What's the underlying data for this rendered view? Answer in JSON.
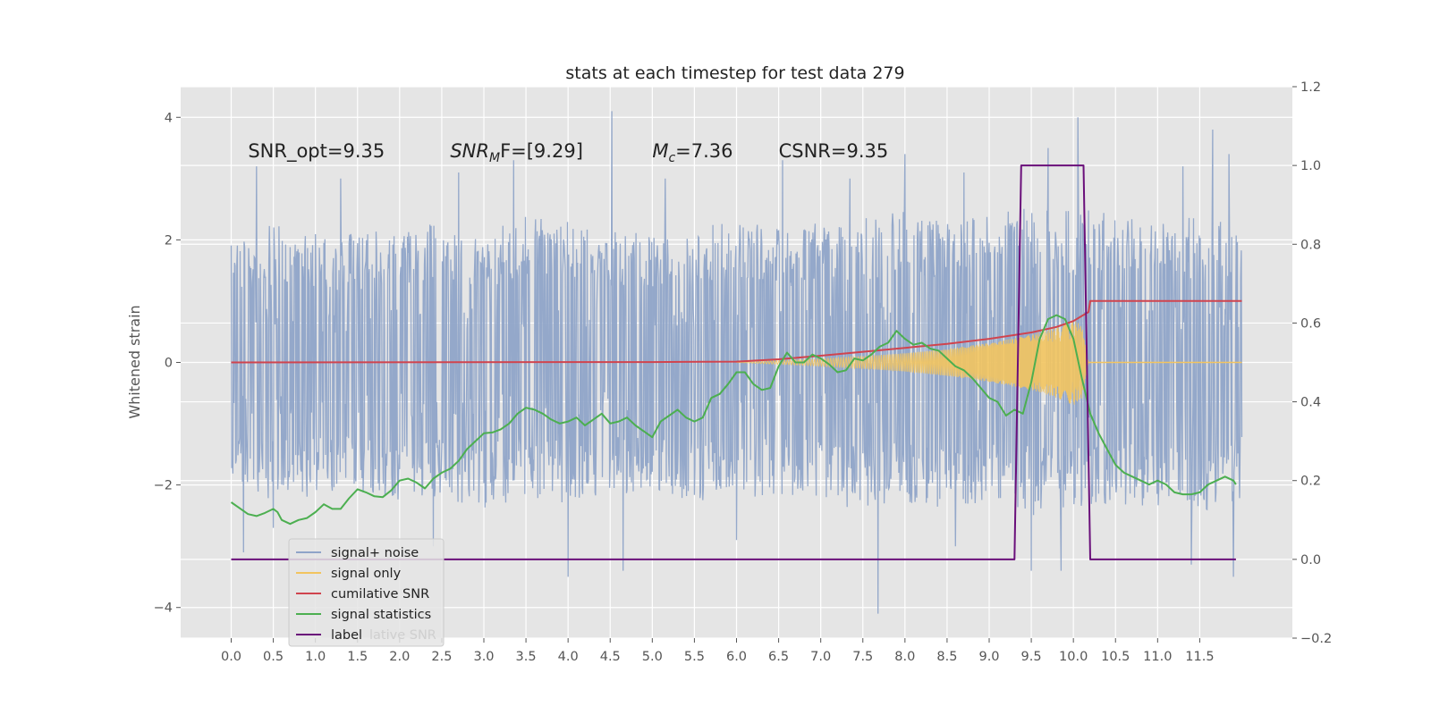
{
  "chart_data": {
    "type": "line",
    "title": "stats at each timestep for test data 279",
    "ylabel": "Whitened strain",
    "xlim": [
      -0.6,
      12.6
    ],
    "ylim_left": [
      -4.5,
      4.5
    ],
    "ylim_right": [
      -0.2,
      1.2
    ],
    "grid": true,
    "x_ticks": [
      "0.0",
      "0.5",
      "1.0",
      "1.5",
      "2.0",
      "2.5",
      "3.0",
      "3.5",
      "4.0",
      "4.5",
      "5.0",
      "5.5",
      "6.0",
      "6.5",
      "7.0",
      "7.5",
      "8.0",
      "8.5",
      "9.0",
      "9.5",
      "10.0",
      "10.5",
      "11.0",
      "11.5"
    ],
    "y_ticks_left": [
      "4",
      "2",
      "0",
      "−2",
      "−4"
    ],
    "y_ticks_right": [
      "1.2",
      "1.0",
      "0.8",
      "0.6",
      "0.4",
      "0.2",
      "0.0",
      "−0.2"
    ],
    "annotations": [
      {
        "text": "SNR_opt=9.35",
        "x": 0.2,
        "y": 3.35
      },
      {
        "base": "SNR",
        "sub": "M",
        "rest": "F=[9.29]",
        "x": 2.6,
        "y": 3.35
      },
      {
        "base": "M",
        "sub": "c",
        "rest": "=7.36",
        "x": 5.0,
        "y": 3.35
      },
      {
        "text": "CSNR=9.35",
        "x": 6.5,
        "y": 3.35
      }
    ],
    "legend": {
      "placement": "lower-left",
      "entries": [
        {
          "label": "signal+ noise",
          "color": "#8fa4c8"
        },
        {
          "label": "signal only",
          "color": "#f2c45f"
        },
        {
          "label": "cumilative SNR",
          "color": "#d0444e"
        },
        {
          "label": "signal statistics",
          "color": "#4caf50"
        },
        {
          "label": "label",
          "color": "#6a0f7a"
        }
      ],
      "overlap_text": "lative SNR"
    },
    "series": [
      {
        "name": "signal+ noise",
        "axis": "left",
        "color": "#8fa4c8",
        "kind": "noise",
        "x_range": [
          0.0,
          12.0
        ],
        "envelope_pos": [
          [
            0.0,
            2.0
          ],
          [
            0.5,
            2.3
          ],
          [
            1.0,
            2.2
          ],
          [
            1.5,
            2.1
          ],
          [
            2.0,
            2.2
          ],
          [
            2.5,
            2.3
          ],
          [
            3.0,
            2.2
          ],
          [
            3.5,
            2.4
          ],
          [
            4.0,
            2.3
          ],
          [
            4.5,
            2.2
          ],
          [
            5.0,
            2.1
          ],
          [
            5.5,
            2.2
          ],
          [
            6.0,
            2.3
          ],
          [
            6.5,
            2.2
          ],
          [
            7.0,
            2.3
          ],
          [
            7.5,
            2.4
          ],
          [
            8.0,
            2.5
          ],
          [
            8.5,
            2.3
          ],
          [
            9.0,
            2.4
          ],
          [
            9.5,
            2.6
          ],
          [
            10.0,
            2.6
          ],
          [
            10.5,
            2.4
          ],
          [
            11.0,
            2.3
          ],
          [
            11.5,
            2.4
          ],
          [
            12.0,
            2.2
          ]
        ],
        "envelope_neg": [
          [
            0.0,
            -2.0
          ],
          [
            0.5,
            -2.3
          ],
          [
            1.0,
            -2.2
          ],
          [
            1.5,
            -2.1
          ],
          [
            2.0,
            -2.3
          ],
          [
            2.5,
            -2.2
          ],
          [
            3.0,
            -2.4
          ],
          [
            3.5,
            -2.2
          ],
          [
            4.0,
            -2.3
          ],
          [
            4.5,
            -2.2
          ],
          [
            5.0,
            -2.1
          ],
          [
            5.5,
            -2.3
          ],
          [
            6.0,
            -2.2
          ],
          [
            6.5,
            -2.2
          ],
          [
            7.0,
            -2.3
          ],
          [
            7.5,
            -2.4
          ],
          [
            8.0,
            -2.3
          ],
          [
            8.5,
            -2.4
          ],
          [
            9.0,
            -2.3
          ],
          [
            9.5,
            -2.5
          ],
          [
            10.0,
            -2.4
          ],
          [
            10.5,
            -2.3
          ],
          [
            11.0,
            -2.4
          ],
          [
            11.5,
            -2.5
          ],
          [
            12.0,
            -2.2
          ]
        ],
        "peaks": [
          [
            0.3,
            3.2
          ],
          [
            1.3,
            3.0
          ],
          [
            2.7,
            3.1
          ],
          [
            3.35,
            3.3
          ],
          [
            4.52,
            4.1
          ],
          [
            5.15,
            3.0
          ],
          [
            6.55,
            3.3
          ],
          [
            7.35,
            3.0
          ],
          [
            8.0,
            3.4
          ],
          [
            8.7,
            3.1
          ],
          [
            9.7,
            3.5
          ],
          [
            10.05,
            4.0
          ],
          [
            11.3,
            3.2
          ],
          [
            11.65,
            3.8
          ],
          [
            11.85,
            3.4
          ],
          [
            0.15,
            -3.1
          ],
          [
            0.5,
            -2.7
          ],
          [
            2.4,
            -3.0
          ],
          [
            4.0,
            -3.5
          ],
          [
            4.65,
            -3.4
          ],
          [
            6.0,
            -2.9
          ],
          [
            7.68,
            -4.1
          ],
          [
            8.6,
            -3.0
          ],
          [
            9.5,
            -3.4
          ],
          [
            9.85,
            -3.4
          ],
          [
            11.4,
            -3.3
          ],
          [
            11.9,
            -3.5
          ]
        ]
      },
      {
        "name": "signal only",
        "axis": "left",
        "color": "#f2c45f",
        "kind": "chirp",
        "x_range": [
          6.0,
          10.18
        ],
        "amplitude": [
          [
            6.0,
            0.0
          ],
          [
            6.5,
            0.03
          ],
          [
            7.0,
            0.06
          ],
          [
            7.5,
            0.1
          ],
          [
            8.0,
            0.15
          ],
          [
            8.5,
            0.22
          ],
          [
            9.0,
            0.32
          ],
          [
            9.5,
            0.45
          ],
          [
            9.8,
            0.58
          ],
          [
            10.0,
            0.7
          ],
          [
            10.1,
            0.6
          ],
          [
            10.18,
            0.0
          ]
        ]
      },
      {
        "name": "cumilative SNR",
        "axis": "right",
        "color": "#d0444e",
        "kind": "line",
        "x": [
          0.0,
          5.0,
          6.0,
          6.5,
          7.0,
          7.5,
          8.0,
          8.5,
          9.0,
          9.5,
          9.8,
          10.0,
          10.1,
          10.18,
          10.2,
          12.0
        ],
        "y": [
          0.5,
          0.501,
          0.502,
          0.508,
          0.517,
          0.527,
          0.537,
          0.547,
          0.56,
          0.576,
          0.59,
          0.605,
          0.618,
          0.628,
          0.656,
          0.656
        ]
      },
      {
        "name": "signal statistics",
        "axis": "right",
        "color": "#4caf50",
        "kind": "line",
        "x": [
          0.0,
          0.1,
          0.2,
          0.3,
          0.4,
          0.5,
          0.55,
          0.6,
          0.7,
          0.8,
          0.9,
          1.0,
          1.1,
          1.2,
          1.3,
          1.4,
          1.5,
          1.6,
          1.7,
          1.8,
          1.9,
          2.0,
          2.1,
          2.2,
          2.3,
          2.4,
          2.5,
          2.6,
          2.7,
          2.8,
          2.9,
          3.0,
          3.1,
          3.2,
          3.3,
          3.4,
          3.5,
          3.6,
          3.7,
          3.8,
          3.9,
          4.0,
          4.1,
          4.2,
          4.3,
          4.4,
          4.5,
          4.6,
          4.7,
          4.8,
          4.9,
          5.0,
          5.1,
          5.2,
          5.3,
          5.4,
          5.5,
          5.6,
          5.7,
          5.8,
          5.9,
          6.0,
          6.1,
          6.2,
          6.3,
          6.4,
          6.5,
          6.6,
          6.7,
          6.8,
          6.9,
          7.0,
          7.1,
          7.2,
          7.3,
          7.4,
          7.5,
          7.6,
          7.7,
          7.8,
          7.9,
          8.0,
          8.1,
          8.2,
          8.3,
          8.4,
          8.5,
          8.6,
          8.7,
          8.8,
          8.9,
          9.0,
          9.1,
          9.2,
          9.3,
          9.4,
          9.5,
          9.6,
          9.7,
          9.8,
          9.9,
          10.0,
          10.1,
          10.2,
          10.3,
          10.4,
          10.5,
          10.6,
          10.7,
          10.8,
          10.9,
          11.0,
          11.1,
          11.2,
          11.3,
          11.4,
          11.5,
          11.6,
          11.7,
          11.8,
          11.9,
          11.93
        ],
        "y": [
          0.145,
          0.13,
          0.115,
          0.11,
          0.118,
          0.128,
          0.12,
          0.1,
          0.09,
          0.1,
          0.105,
          0.12,
          0.14,
          0.128,
          0.128,
          0.155,
          0.178,
          0.17,
          0.16,
          0.158,
          0.175,
          0.2,
          0.205,
          0.195,
          0.18,
          0.205,
          0.22,
          0.23,
          0.25,
          0.28,
          0.3,
          0.32,
          0.322,
          0.33,
          0.345,
          0.37,
          0.385,
          0.38,
          0.37,
          0.355,
          0.345,
          0.35,
          0.36,
          0.34,
          0.355,
          0.37,
          0.345,
          0.35,
          0.36,
          0.34,
          0.325,
          0.31,
          0.35,
          0.365,
          0.38,
          0.36,
          0.35,
          0.36,
          0.41,
          0.42,
          0.445,
          0.475,
          0.475,
          0.445,
          0.43,
          0.435,
          0.49,
          0.525,
          0.5,
          0.5,
          0.52,
          0.51,
          0.495,
          0.475,
          0.48,
          0.51,
          0.505,
          0.52,
          0.54,
          0.55,
          0.58,
          0.56,
          0.545,
          0.55,
          0.535,
          0.53,
          0.51,
          0.49,
          0.48,
          0.46,
          0.435,
          0.41,
          0.4,
          0.365,
          0.38,
          0.37,
          0.45,
          0.56,
          0.61,
          0.62,
          0.61,
          0.56,
          0.46,
          0.37,
          0.32,
          0.28,
          0.24,
          0.22,
          0.21,
          0.2,
          0.19,
          0.2,
          0.19,
          0.17,
          0.165,
          0.165,
          0.17,
          0.19,
          0.2,
          0.21,
          0.2,
          0.19
        ]
      },
      {
        "name": "label",
        "axis": "right",
        "color": "#6a0f7a",
        "kind": "line",
        "x": [
          0.0,
          9.3,
          9.38,
          10.12,
          10.2,
          11.93
        ],
        "y": [
          0.0,
          0.0,
          1.0,
          1.0,
          0.0,
          0.0
        ]
      }
    ]
  }
}
